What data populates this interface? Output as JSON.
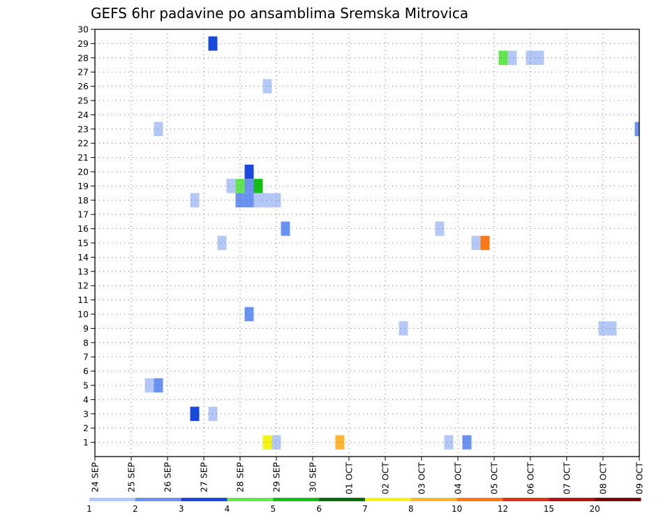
{
  "chart_data": {
    "type": "heatmap",
    "title": "GEFS 6hr padavine po ansamblima Sremska Mitrovica",
    "xlabel": "",
    "ylabel": "",
    "x_tick_labels": [
      "24 SEP",
      "25 SEP",
      "26 SEP",
      "27 SEP",
      "28 SEP",
      "29 SEP",
      "30 SEP",
      "01 OCT",
      "02 OCT",
      "03 OCT",
      "04 OCT",
      "05 OCT",
      "06 OCT",
      "07 OCT",
      "08 OCT",
      "09 OCT"
    ],
    "xlim": [
      0,
      15
    ],
    "y_tick_labels": [
      "1",
      "2",
      "3",
      "4",
      "5",
      "6",
      "7",
      "8",
      "9",
      "10",
      "11",
      "12",
      "13",
      "14",
      "15",
      "16",
      "17",
      "18",
      "19",
      "20",
      "21",
      "22",
      "23",
      "24",
      "25",
      "26",
      "27",
      "28",
      "29",
      "30"
    ],
    "ylim": [
      0,
      30
    ],
    "grid": true,
    "legend": {
      "position": "bottom",
      "labels": [
        "1",
        "2",
        "3",
        "4",
        "5",
        "6",
        "7",
        "8",
        "10",
        "12",
        "15",
        "20"
      ],
      "colors": [
        "#b4c8f8",
        "#6a92f0",
        "#1848dc",
        "#64e650",
        "#14be14",
        "#0a6e0a",
        "#f5f514",
        "#ffb432",
        "#ff7814",
        "#e63214",
        "#b41414",
        "#780a0a"
      ]
    },
    "cells": [
      {
        "day": 3.25,
        "member": 29,
        "bin": 3
      },
      {
        "day": 11.25,
        "member": 28,
        "bin": 4
      },
      {
        "day": 11.5,
        "member": 28,
        "bin": 1
      },
      {
        "day": 12.0,
        "member": 28,
        "bin": 1
      },
      {
        "day": 12.25,
        "member": 28,
        "bin": 1
      },
      {
        "day": 4.75,
        "member": 26,
        "bin": 1
      },
      {
        "day": 1.75,
        "member": 23,
        "bin": 1
      },
      {
        "day": 15.0,
        "member": 23,
        "bin": 2
      },
      {
        "day": 4.25,
        "member": 20,
        "bin": 3
      },
      {
        "day": 3.75,
        "member": 19,
        "bin": 1
      },
      {
        "day": 4.0,
        "member": 19,
        "bin": 4
      },
      {
        "day": 4.25,
        "member": 19,
        "bin": 2
      },
      {
        "day": 4.5,
        "member": 19,
        "bin": 5
      },
      {
        "day": 2.75,
        "member": 18,
        "bin": 1
      },
      {
        "day": 4.0,
        "member": 18,
        "bin": 2
      },
      {
        "day": 4.25,
        "member": 18,
        "bin": 2
      },
      {
        "day": 4.5,
        "member": 18,
        "bin": 1
      },
      {
        "day": 4.75,
        "member": 18,
        "bin": 1
      },
      {
        "day": 5.0,
        "member": 18,
        "bin": 1
      },
      {
        "day": 5.25,
        "member": 16,
        "bin": 2
      },
      {
        "day": 9.5,
        "member": 16,
        "bin": 1
      },
      {
        "day": 3.5,
        "member": 15,
        "bin": 1
      },
      {
        "day": 10.5,
        "member": 15,
        "bin": 1
      },
      {
        "day": 10.75,
        "member": 15,
        "bin": 9
      },
      {
        "day": 4.25,
        "member": 10,
        "bin": 2
      },
      {
        "day": 8.5,
        "member": 9,
        "bin": 1
      },
      {
        "day": 14.0,
        "member": 9,
        "bin": 1
      },
      {
        "day": 14.25,
        "member": 9,
        "bin": 1
      },
      {
        "day": 1.5,
        "member": 5,
        "bin": 1
      },
      {
        "day": 1.75,
        "member": 5,
        "bin": 2
      },
      {
        "day": 2.75,
        "member": 3,
        "bin": 3
      },
      {
        "day": 3.25,
        "member": 3,
        "bin": 1
      },
      {
        "day": 4.75,
        "member": 1,
        "bin": 7
      },
      {
        "day": 5.0,
        "member": 1,
        "bin": 1
      },
      {
        "day": 6.75,
        "member": 1,
        "bin": 8
      },
      {
        "day": 9.75,
        "member": 1,
        "bin": 1
      },
      {
        "day": 10.25,
        "member": 1,
        "bin": 2
      }
    ]
  }
}
